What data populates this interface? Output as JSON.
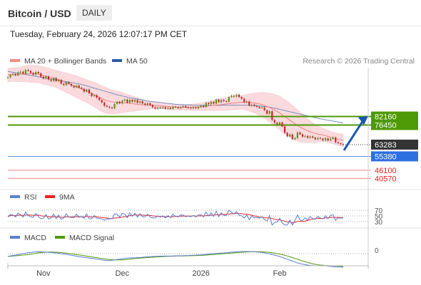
{
  "header": {
    "title": "Bitcoin / USD",
    "timeframe": "DAILY",
    "datetime": "Tuesday, February 24, 2026 12:07:17 PM CET"
  },
  "legend": {
    "price": [
      {
        "label": "MA 20 + Bollinger Bands",
        "color": "#f28b82"
      },
      {
        "label": "MA 50",
        "color": "#2e5aa8"
      }
    ],
    "rsi": [
      {
        "label": "RSI",
        "color": "#5b7fd6"
      },
      {
        "label": "9MA",
        "color": "#e8231f"
      }
    ],
    "macd": [
      {
        "label": "MACD",
        "color": "#5b7fd6"
      },
      {
        "label": "MACD Signal",
        "color": "#4e9a06"
      }
    ]
  },
  "copyright": "Research © 2026 Trading Central",
  "colors": {
    "up": "#4e9a06",
    "down": "#cc1f1f",
    "resistance": "#4e9a06",
    "support": "#2e6fe0",
    "target": "#f08080",
    "arrow": "#1a56b0",
    "band": "#fadadd"
  },
  "chart_data": {
    "type": "candlestick",
    "y_range": [
      35000,
      115000
    ],
    "x_labels": [
      "Nov",
      "Dec",
      "2026",
      "Feb"
    ],
    "x_label_days": [
      14,
      45,
      76,
      107
    ],
    "last_day": 132,
    "levels": [
      {
        "value": 82160,
        "label": "82160",
        "kind": "resistance",
        "bg": "#4e9a06"
      },
      {
        "value": 76450,
        "label": "76450",
        "kind": "resistance",
        "bg": "#4e9a06"
      },
      {
        "value": 63283,
        "label": "63283",
        "kind": "last",
        "bg": "#333333"
      },
      {
        "value": 55380,
        "label": "55380",
        "kind": "pivot",
        "bg": "#2e6fe0"
      },
      {
        "value": 46100,
        "label": "46100",
        "kind": "target",
        "color": "#e8231f"
      },
      {
        "value": 40570,
        "label": "40570",
        "kind": "target",
        "color": "#e8231f"
      }
    ],
    "close": [
      108500,
      110200,
      110800,
      109900,
      111800,
      112300,
      111000,
      113500,
      112800,
      111500,
      110300,
      112100,
      111200,
      108900,
      107700,
      109200,
      107000,
      106100,
      108000,
      105900,
      106800,
      104200,
      103300,
      105200,
      104000,
      102800,
      101700,
      103000,
      101500,
      100800,
      98900,
      100300,
      97800,
      95900,
      96500,
      94800,
      93200,
      91600,
      89400,
      88800,
      88200,
      87700,
      90600,
      92100,
      91000,
      92800,
      93600,
      91500,
      93400,
      92100,
      93300,
      91400,
      92400,
      90900,
      90100,
      91100,
      89800,
      88400,
      87500,
      88300,
      87900,
      88500,
      87400,
      88100,
      87300,
      88800,
      88400,
      87800,
      88600,
      89100,
      88300,
      88100,
      87700,
      88300,
      87700,
      88600,
      89400,
      88600,
      91300,
      90500,
      92100,
      90800,
      93600,
      91800,
      93200,
      92500,
      92100,
      95300,
      96200,
      95600,
      96900,
      95300,
      94100,
      91800,
      92300,
      89500,
      90100,
      89200,
      88700,
      87900,
      88300,
      86400,
      84000,
      85800,
      79800,
      78000,
      76800,
      78200,
      75500,
      71200,
      68800,
      70100,
      66900,
      67700,
      71500,
      70200,
      68600,
      69100,
      67900,
      68800,
      68000,
      66900,
      67800,
      67300,
      66200,
      67500,
      66100,
      67200,
      68100,
      64800,
      64200,
      63600,
      63283
    ],
    "ma20": [
      110000,
      110200,
      110300,
      110300,
      110400,
      110600,
      110800,
      110900,
      111000,
      110900,
      110800,
      110800,
      110600,
      110200,
      109700,
      109400,
      108900,
      108400,
      107900,
      107400,
      106800,
      106100,
      105500,
      104900,
      104300,
      103600,
      102900,
      102200,
      101500,
      100800,
      100000,
      99300,
      98500,
      97700,
      96900,
      96000,
      95100,
      94300,
      93500,
      92800,
      92300,
      92000,
      91800,
      91700,
      91600,
      91500,
      91400,
      91200,
      91100,
      90800,
      90600,
      90400,
      90200,
      90100,
      90000,
      89900,
      89800,
      89700,
      89600,
      89500,
      89400,
      89200,
      89100,
      88900,
      88700,
      88600,
      88500,
      88400,
      88300,
      88300,
      88300,
      88300,
      88400,
      88400,
      88500,
      88600,
      88700,
      88900,
      89100,
      89300,
      89500,
      89600,
      89800,
      90000,
      90200,
      90400,
      90600,
      90800,
      91100,
      91200,
      91400,
      91600,
      91700,
      91700,
      91700,
      91600,
      91500,
      91300,
      91000,
      90600,
      90200,
      89600,
      88900,
      88200,
      87400,
      86500,
      85500,
      84500,
      83300,
      82100,
      80900,
      79700,
      78500,
      77300,
      76100,
      75100,
      74200,
      73400,
      72600,
      71900,
      71300,
      70800,
      70400,
      70100,
      69800,
      69400,
      68800,
      68200,
      67700,
      67200,
      66800,
      66500,
      66200
    ],
    "ma50": [
      112500,
      112200,
      111900,
      111600,
      111300,
      111000,
      110700,
      110400,
      110100,
      109800,
      109500,
      109200,
      108900,
      108600,
      108300,
      108000,
      107700,
      107400,
      107100,
      106800,
      106500,
      106200,
      105900,
      105600,
      105300,
      105000,
      104700,
      104400,
      104100,
      103700,
      103300,
      102800,
      102300,
      101800,
      101300,
      100800,
      100300,
      99800,
      99300,
      98800,
      98300,
      97800,
      97300,
      96800,
      96400,
      96000,
      95600,
      95200,
      94800,
      94500,
      94200,
      93900,
      93600,
      93300,
      93000,
      92700,
      92400,
      92200,
      92000,
      91800,
      91600,
      91400,
      91200,
      91000,
      90800,
      90600,
      90400,
      90300,
      90200,
      90100,
      90000,
      89900,
      89900,
      89800,
      89800,
      89700,
      89700,
      89700,
      89700,
      89700,
      89600,
      89600,
      89600,
      89600,
      89700,
      89800,
      89800,
      89800,
      89800,
      89800,
      89800,
      89800,
      89800,
      89800,
      89800,
      89800,
      89700,
      89600,
      89500,
      89300,
      89100,
      88900,
      88700,
      88400,
      88100,
      87800,
      87400,
      87000,
      86600,
      86200,
      85800,
      85400,
      85000,
      84600,
      84200,
      83800,
      83400,
      83000,
      82600,
      82200,
      81800,
      81400,
      81000,
      80600,
      80300,
      80000,
      79700,
      79400,
      79100,
      78800,
      78500,
      78200,
      77900
    ],
    "bb_half_width": [
      4500,
      4500,
      4500,
      4600,
      4800,
      5000,
      5200,
      5400,
      5600,
      5800,
      5800,
      5800,
      5800,
      5800,
      5800,
      5800,
      5800,
      5800,
      5800,
      5800,
      5900,
      6100,
      6300,
      6500,
      6700,
      6900,
      7100,
      7300,
      7400,
      7500,
      7600,
      7700,
      7900,
      8100,
      8300,
      8500,
      8600,
      8700,
      8700,
      8600,
      8400,
      8100,
      7800,
      7500,
      7200,
      6800,
      6400,
      5900,
      5500,
      5200,
      4800,
      4400,
      4000,
      3600,
      3200,
      2900,
      2600,
      2400,
      2300,
      2200,
      2100,
      2000,
      2000,
      2000,
      2000,
      2000,
      2000,
      2000,
      2000,
      2000,
      2000,
      2000,
      2100,
      2200,
      2300,
      2400,
      2500,
      2700,
      2900,
      3100,
      3300,
      3500,
      3700,
      3900,
      4100,
      4300,
      4400,
      4500,
      4500,
      4500,
      4500,
      4500,
      4600,
      4900,
      5300,
      5700,
      6200,
      6700,
      7200,
      7700,
      8200,
      8700,
      9200,
      9700,
      10200,
      10600,
      11000,
      11300,
      11500,
      11600,
      11600,
      11500,
      11300,
      11000,
      10600,
      10000,
      9400,
      8700,
      8000,
      7300,
      6600,
      6000,
      5400,
      4900,
      4500,
      4200,
      4000,
      3900,
      3900,
      4000,
      4100,
      4100,
      4100
    ],
    "rsi": {
      "y_range": [
        0,
        100
      ],
      "ticks": [
        70,
        50,
        30
      ],
      "tick_labels": [
        "70",
        "50",
        "30"
      ]
    },
    "macd": {
      "zero_label": "0"
    }
  }
}
